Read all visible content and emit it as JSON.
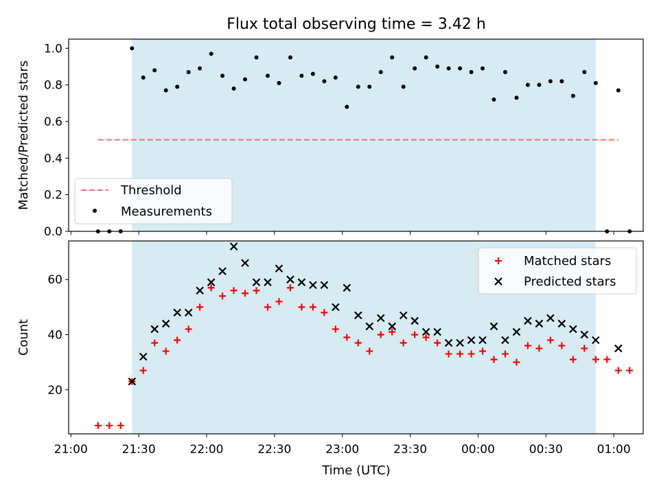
{
  "figure": {
    "title": "Flux total observing time = 3.42 h",
    "xlabel": "Time (UTC)",
    "x_ticks": [
      "21:00",
      "21:30",
      "22:00",
      "22:30",
      "23:00",
      "23:30",
      "00:00",
      "00:30",
      "01:00"
    ],
    "shaded_region": {
      "start": "21:27",
      "end": "00:52",
      "color": "#add8e6"
    }
  },
  "chart_data": [
    {
      "type": "scatter",
      "ylabel": "Matched/Predicted stars",
      "ylim": [
        0.0,
        1.05
      ],
      "y_ticks": [
        "0.0",
        "0.2",
        "0.4",
        "0.6",
        "0.8",
        "1.0"
      ],
      "legend": {
        "placement": "lower-left"
      },
      "threshold": {
        "name": "Threshold",
        "value": 0.5,
        "x_range": [
          "21:12",
          "01:02"
        ],
        "color": "#f07070"
      },
      "series": [
        {
          "name": "Measurements",
          "color": "#000000",
          "marker": "dot",
          "x": [
            "21:12",
            "21:17",
            "21:22",
            "21:27",
            "21:32",
            "21:37",
            "21:42",
            "21:47",
            "21:52",
            "21:57",
            "22:02",
            "22:07",
            "22:12",
            "22:17",
            "22:22",
            "22:27",
            "22:32",
            "22:37",
            "22:42",
            "22:47",
            "22:52",
            "22:57",
            "23:02",
            "23:07",
            "23:12",
            "23:17",
            "23:22",
            "23:27",
            "23:32",
            "23:37",
            "23:42",
            "23:47",
            "23:52",
            "23:57",
            "00:02",
            "00:07",
            "00:12",
            "00:17",
            "00:22",
            "00:27",
            "00:32",
            "00:37",
            "00:42",
            "00:47",
            "00:52",
            "00:57",
            "01:02",
            "01:07"
          ],
          "y": [
            0.0,
            0.0,
            0.0,
            1.0,
            0.84,
            0.88,
            0.77,
            0.79,
            0.87,
            0.89,
            0.97,
            0.85,
            0.78,
            0.83,
            0.95,
            0.85,
            0.81,
            0.95,
            0.85,
            0.86,
            0.82,
            0.84,
            0.68,
            0.79,
            0.79,
            0.87,
            0.95,
            0.79,
            0.89,
            0.95,
            0.9,
            0.89,
            0.89,
            0.87,
            0.89,
            0.72,
            0.87,
            0.73,
            0.8,
            0.8,
            0.82,
            0.82,
            0.74,
            0.87,
            0.81,
            0.0,
            0.77,
            0.0
          ]
        }
      ]
    },
    {
      "type": "scatter",
      "ylabel": "Count",
      "ylim": [
        4,
        74
      ],
      "y_ticks": [
        "20",
        "40",
        "60"
      ],
      "legend": {
        "placement": "top-right"
      },
      "series": [
        {
          "name": "Matched stars",
          "color": "#ff0000",
          "marker": "plus",
          "x": [
            "21:12",
            "21:17",
            "21:22",
            "21:27",
            "21:32",
            "21:37",
            "21:42",
            "21:47",
            "21:52",
            "21:57",
            "22:02",
            "22:07",
            "22:12",
            "22:17",
            "22:22",
            "22:27",
            "22:32",
            "22:37",
            "22:42",
            "22:47",
            "22:52",
            "22:57",
            "23:02",
            "23:07",
            "23:12",
            "23:17",
            "23:22",
            "23:27",
            "23:32",
            "23:37",
            "23:42",
            "23:47",
            "23:52",
            "23:57",
            "00:02",
            "00:07",
            "00:12",
            "00:17",
            "00:22",
            "00:27",
            "00:32",
            "00:37",
            "00:42",
            "00:47",
            "00:52",
            "00:57",
            "01:02",
            "01:07"
          ],
          "y": [
            7,
            7,
            7,
            23,
            27,
            37,
            34,
            38,
            42,
            50,
            57,
            54,
            56,
            55,
            56,
            50,
            52,
            57,
            50,
            50,
            48,
            42,
            39,
            37,
            34,
            40,
            41,
            37,
            40,
            39,
            37,
            33,
            33,
            33,
            34,
            31,
            33,
            30,
            36,
            35,
            38,
            36,
            31,
            35,
            31,
            31,
            27,
            27
          ]
        },
        {
          "name": "Predicted stars",
          "color": "#000000",
          "marker": "x",
          "x": [
            "21:27",
            "21:32",
            "21:37",
            "21:42",
            "21:47",
            "21:52",
            "21:57",
            "22:02",
            "22:07",
            "22:12",
            "22:17",
            "22:22",
            "22:27",
            "22:32",
            "22:37",
            "22:42",
            "22:47",
            "22:52",
            "22:57",
            "23:02",
            "23:07",
            "23:12",
            "23:17",
            "23:22",
            "23:27",
            "23:32",
            "23:37",
            "23:42",
            "23:47",
            "23:52",
            "23:57",
            "00:02",
            "00:07",
            "00:12",
            "00:17",
            "00:22",
            "00:27",
            "00:32",
            "00:37",
            "00:42",
            "00:47",
            "00:52",
            "01:02"
          ],
          "y": [
            23,
            32,
            42,
            44,
            48,
            48,
            56,
            59,
            63,
            72,
            66,
            59,
            59,
            64,
            60,
            59,
            58,
            58,
            50,
            57,
            47,
            43,
            46,
            43,
            47,
            45,
            41,
            41,
            37,
            37,
            38,
            38,
            43,
            38,
            41,
            45,
            44,
            46,
            44,
            42,
            40,
            38,
            35
          ]
        }
      ]
    }
  ]
}
